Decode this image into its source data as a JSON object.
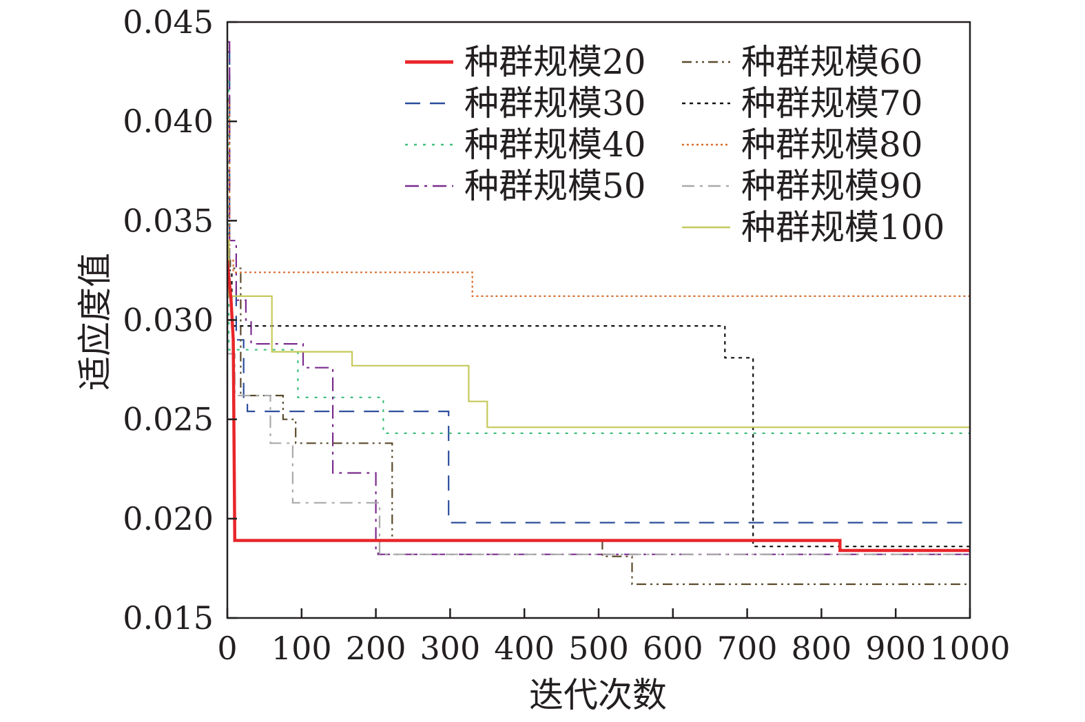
{
  "chart_data": {
    "type": "line",
    "xlabel": "迭代次数",
    "ylabel": "适应度值",
    "xlim": [
      0,
      1000
    ],
    "ylim": [
      0.015,
      0.045
    ],
    "xticks": [
      "0",
      "100",
      "200",
      "300",
      "400",
      "500",
      "600",
      "700",
      "800",
      "900",
      "1000"
    ],
    "yticks": [
      "0.015",
      "0.020",
      "0.025",
      "0.030",
      "0.035",
      "0.040",
      "0.045"
    ],
    "grid": false,
    "legend_position": "top-right",
    "series": [
      {
        "name": "种群规模20",
        "color": "#e8262a",
        "dash": "solid",
        "width": 4.5,
        "x": [
          0,
          5,
          8,
          10,
          825,
          825,
          1000
        ],
        "y": [
          0.033,
          0.031,
          0.029,
          0.0189,
          0.0189,
          0.0184,
          0.0184
        ]
      },
      {
        "name": "种群规模30",
        "color": "#2a4d9b",
        "dash": "22 14",
        "width": 2.2,
        "x": [
          0,
          3,
          3,
          12,
          12,
          22,
          22,
          27,
          27,
          298,
          298,
          1000
        ],
        "y": [
          0.0435,
          0.0435,
          0.0315,
          0.0315,
          0.029,
          0.029,
          0.026,
          0.026,
          0.0254,
          0.0254,
          0.0198,
          0.0198
        ]
      },
      {
        "name": "种群规模40",
        "color": "#3fbf7f",
        "dash": "4 9",
        "width": 2.2,
        "x": [
          0,
          2,
          2,
          95,
          95,
          210,
          210,
          1000
        ],
        "y": [
          0.042,
          0.042,
          0.0285,
          0.0285,
          0.0261,
          0.0261,
          0.0243,
          0.0243
        ]
      },
      {
        "name": "种群规模50",
        "color": "#7a2b8e",
        "dash": "20 8 4 8",
        "width": 2.2,
        "x": [
          0,
          3,
          3,
          12,
          12,
          25,
          25,
          32,
          32,
          40,
          40,
          102,
          102,
          142,
          142,
          160,
          160,
          200,
          200,
          203,
          203,
          1000
        ],
        "y": [
          0.044,
          0.044,
          0.034,
          0.034,
          0.031,
          0.031,
          0.03,
          0.03,
          0.0288,
          0.0288,
          0.0288,
          0.0288,
          0.0276,
          0.0276,
          0.0223,
          0.0223,
          0.0223,
          0.0223,
          0.0184,
          0.0184,
          0.0182,
          0.0182
        ]
      },
      {
        "name": "种群规模60",
        "color": "#5a4a2a",
        "dash": "14 6 3 6 3 6",
        "width": 2.2,
        "x": [
          0,
          4,
          4,
          18,
          18,
          75,
          75,
          92,
          92,
          128,
          128,
          140,
          140,
          222,
          222,
          505,
          505,
          545,
          545,
          1000
        ],
        "y": [
          0.033,
          0.033,
          0.0326,
          0.0326,
          0.0262,
          0.0262,
          0.025,
          0.025,
          0.0238,
          0.0238,
          0.0238,
          0.0238,
          0.0238,
          0.0238,
          0.0189,
          0.0189,
          0.0181,
          0.0181,
          0.0167,
          0.0167
        ]
      },
      {
        "name": "种群规模70",
        "color": "#111111",
        "dash": "5 6",
        "width": 2.2,
        "x": [
          0,
          6,
          6,
          670,
          670,
          708,
          708,
          1000
        ],
        "y": [
          0.0325,
          0.0325,
          0.0297,
          0.0297,
          0.0281,
          0.0281,
          0.0186,
          0.0186
        ]
      },
      {
        "name": "种群规模80",
        "color": "#d86d2c",
        "dash": "3 4",
        "width": 2.2,
        "x": [
          0,
          3,
          3,
          8,
          8,
          330,
          330,
          1000
        ],
        "y": [
          0.041,
          0.041,
          0.033,
          0.033,
          0.0324,
          0.0324,
          0.0312,
          0.0312
        ]
      },
      {
        "name": "种群规模90",
        "color": "#a9a9a9",
        "dash": "18 8 4 8",
        "width": 2.2,
        "x": [
          0,
          10,
          10,
          22,
          22,
          58,
          58,
          88,
          88,
          205,
          205,
          1000
        ],
        "y": [
          0.0283,
          0.0283,
          0.0262,
          0.0262,
          0.0262,
          0.0262,
          0.0238,
          0.0238,
          0.0208,
          0.0208,
          0.0182,
          0.0182
        ]
      },
      {
        "name": "种群规模100",
        "color": "#c5c95a",
        "dash": "solid",
        "width": 2.2,
        "x": [
          0,
          2,
          2,
          60,
          60,
          168,
          168,
          325,
          325,
          350,
          350,
          1000
        ],
        "y": [
          0.034,
          0.034,
          0.0312,
          0.0312,
          0.0284,
          0.0284,
          0.0277,
          0.0277,
          0.0259,
          0.0259,
          0.0246,
          0.0246
        ]
      }
    ]
  }
}
